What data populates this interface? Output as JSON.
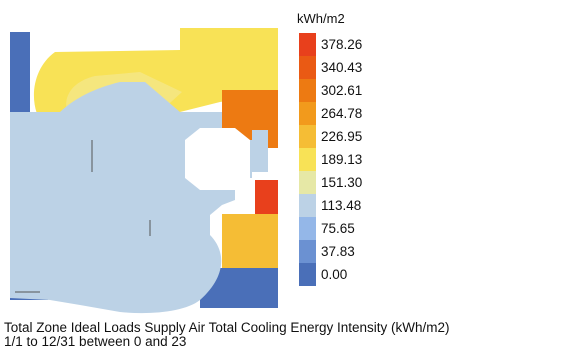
{
  "legend": {
    "unit": "kWh/m2",
    "bins": [
      {
        "label": "378.26",
        "color": "#e8401c"
      },
      {
        "label": "340.43",
        "color": "#ea5a14"
      },
      {
        "label": "302.61",
        "color": "#ed7a12"
      },
      {
        "label": "264.78",
        "color": "#f29a1c"
      },
      {
        "label": "226.95",
        "color": "#f5bd35"
      },
      {
        "label": "189.13",
        "color": "#f8e256"
      },
      {
        "label": "151.30",
        "color": "#e6e8a6"
      },
      {
        "label": "113.48",
        "color": "#bcd2e6"
      },
      {
        "label": "75.65",
        "color": "#94b7e8"
      },
      {
        "label": "37.83",
        "color": "#6b91d2"
      },
      {
        "label": "0.00",
        "color": "#4a6fb8"
      }
    ]
  },
  "caption": {
    "line1": "Total Zone Ideal Loads Supply Air Total Cooling Energy Intensity (kWh/m2)",
    "line2": "1/1 to 12/31 between 0 and 23"
  }
}
